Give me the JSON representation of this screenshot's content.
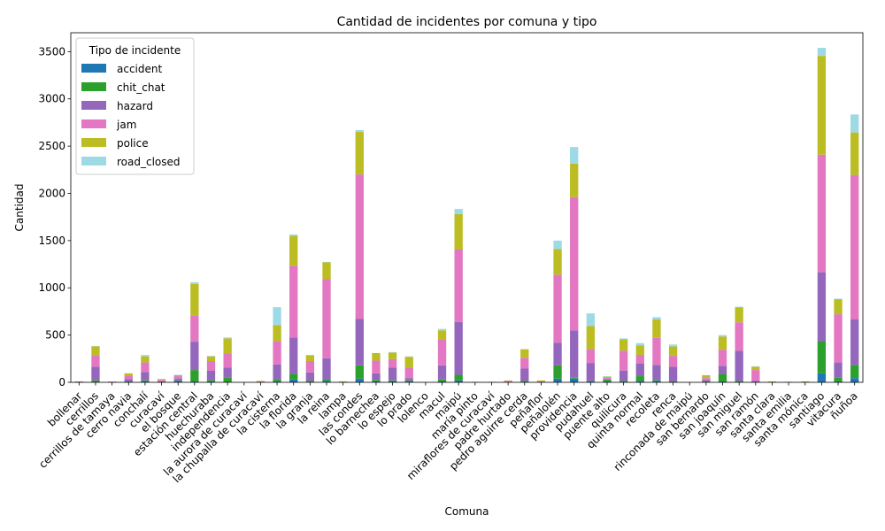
{
  "chart_data": {
    "type": "bar",
    "stacked": true,
    "title": "Cantidad de incidentes por comuna y tipo",
    "xlabel": "Comuna",
    "ylabel": "Cantidad",
    "ylim": [
      0,
      3700
    ],
    "yticks": [
      0,
      500,
      1000,
      1500,
      2000,
      2500,
      3000,
      3500
    ],
    "grid": false,
    "legend": {
      "title": "Tipo de incidente",
      "placement": "top-left"
    },
    "categories": [
      "bollenar",
      "cerrillos",
      "cerrillos de tamaya",
      "cerro navia",
      "conchalí",
      "curacaví",
      "el bosque",
      "estación central",
      "huechuraba",
      "independencia",
      "la aurora de curacaví",
      "la chupalla de curacaví",
      "la cisterna",
      "la florida",
      "la granja",
      "la reina",
      "lampa",
      "las condes",
      "lo barnechea",
      "lo espejo",
      "lo prado",
      "lolenco",
      "macul",
      "maipú",
      "maría pinto",
      "miraflores de curacaví",
      "padre hurtado",
      "pedro aguirre cerda",
      "peñaflor",
      "peñalolén",
      "providencia",
      "pudahuel",
      "puente alto",
      "quilicura",
      "quinta normal",
      "recoleta",
      "renca",
      "rinconada de maipú",
      "san bernardo",
      "san joaquín",
      "san miguel",
      "san ramón",
      "santa clara",
      "santa emilia",
      "santa mónica",
      "santiago",
      "vitacura",
      "ñuñoa"
    ],
    "series": [
      {
        "name": "accident",
        "color": "#1f77b4",
        "values": [
          0,
          5,
          0,
          5,
          10,
          0,
          15,
          10,
          10,
          0,
          0,
          0,
          10,
          30,
          5,
          15,
          0,
          40,
          10,
          10,
          10,
          0,
          10,
          20,
          0,
          0,
          0,
          5,
          0,
          40,
          40,
          10,
          10,
          5,
          15,
          15,
          5,
          0,
          5,
          10,
          5,
          0,
          0,
          0,
          0,
          95,
          10,
          45
        ]
      },
      {
        "name": "chit_chat",
        "color": "#2ca02c",
        "values": [
          0,
          15,
          0,
          5,
          10,
          0,
          5,
          120,
          15,
          50,
          0,
          0,
          25,
          60,
          10,
          20,
          0,
          140,
          15,
          10,
          10,
          0,
          20,
          60,
          0,
          0,
          0,
          10,
          0,
          140,
          10,
          5,
          20,
          10,
          50,
          10,
          5,
          0,
          5,
          80,
          10,
          0,
          0,
          0,
          0,
          340,
          40,
          140
        ]
      },
      {
        "name": "hazard",
        "color": "#9467bd",
        "values": [
          5,
          145,
          3,
          25,
          90,
          10,
          20,
          300,
          100,
          105,
          0,
          5,
          155,
          385,
          90,
          220,
          0,
          490,
          70,
          135,
          25,
          0,
          150,
          560,
          0,
          0,
          5,
          130,
          5,
          240,
          500,
          190,
          5,
          110,
          135,
          160,
          155,
          0,
          15,
          85,
          320,
          15,
          0,
          5,
          0,
          730,
          160,
          480
        ]
      },
      {
        "name": "jam",
        "color": "#e377c2",
        "values": [
          5,
          120,
          5,
          35,
          100,
          15,
          25,
          280,
          100,
          150,
          0,
          5,
          245,
          760,
          120,
          840,
          0,
          1530,
          135,
          90,
          110,
          0,
          270,
          765,
          5,
          0,
          10,
          115,
          5,
          720,
          1410,
          145,
          15,
          210,
          90,
          285,
          115,
          0,
          20,
          170,
          300,
          115,
          5,
          0,
          5,
          1245,
          510,
          1530
        ]
      },
      {
        "name": "police",
        "color": "#bcbd22",
        "values": [
          0,
          95,
          0,
          25,
          65,
          10,
          10,
          330,
          50,
          160,
          0,
          5,
          170,
          315,
          60,
          175,
          10,
          450,
          80,
          70,
          115,
          0,
          100,
          375,
          0,
          5,
          5,
          90,
          10,
          270,
          355,
          245,
          10,
          120,
          100,
          195,
          100,
          0,
          30,
          140,
          160,
          35,
          5,
          0,
          5,
          1045,
          160,
          450
        ]
      },
      {
        "name": "road_closed",
        "color": "#9edae5",
        "values": [
          0,
          5,
          0,
          0,
          15,
          0,
          5,
          20,
          5,
          10,
          0,
          0,
          190,
          15,
          5,
          5,
          0,
          20,
          0,
          5,
          5,
          0,
          15,
          55,
          0,
          0,
          0,
          0,
          0,
          90,
          175,
          135,
          5,
          10,
          25,
          25,
          20,
          0,
          0,
          15,
          5,
          5,
          0,
          0,
          0,
          85,
          5,
          190
        ]
      }
    ]
  }
}
